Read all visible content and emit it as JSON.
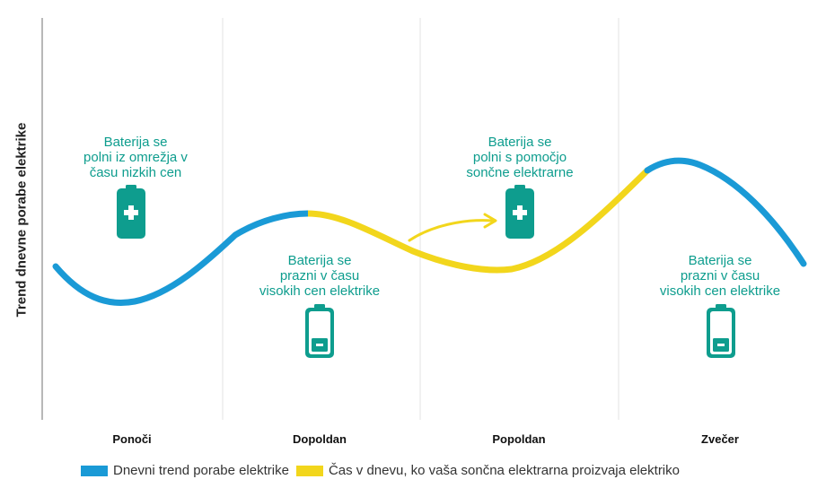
{
  "y_axis_label": "Trend dnevne porabe elektrike",
  "periods": [
    "Ponoči",
    "Dopoldan",
    "Popoldan",
    "Zvečer"
  ],
  "notes": [
    {
      "lines": [
        "Baterija se",
        "polni iz omrežja v",
        "času nizkih cen"
      ],
      "battery": "charging"
    },
    {
      "lines": [
        "Baterija se",
        "prazni v času",
        "visokih cen elektrike"
      ],
      "battery": "discharging"
    },
    {
      "lines": [
        "Baterija se",
        "polni s pomočjo",
        "sončne elektrarne"
      ],
      "battery": "charging"
    },
    {
      "lines": [
        "Baterija se",
        "prazni v času",
        "visokih cen elektrike"
      ],
      "battery": "discharging"
    }
  ],
  "legend": [
    {
      "label": "Dnevni trend porabe elektrike",
      "color": "#1a9ad6"
    },
    {
      "label": "Čas v dnevu, ko vaša sončna elektrarna proizvaja elektriko",
      "color": "#f2d61c"
    }
  ],
  "colors": {
    "consumption": "#1a9ad6",
    "solar": "#f2d61c",
    "accent": "#0e9d8e"
  },
  "icons": [
    "battery-charging-icon",
    "battery-empty-icon",
    "arrow-icon"
  ]
}
